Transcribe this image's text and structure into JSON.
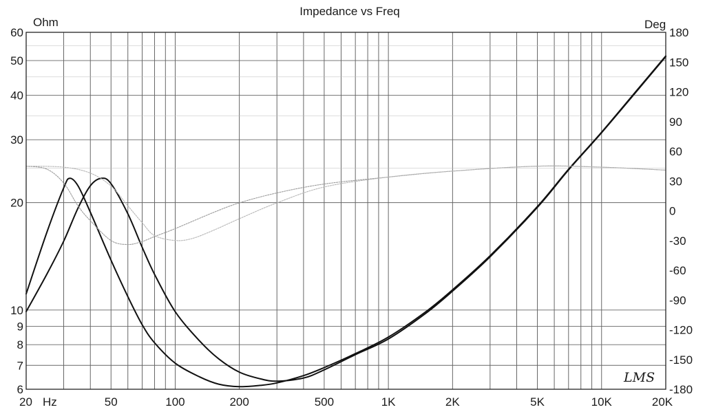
{
  "chart_data": {
    "type": "line",
    "title": "Impedance vs Freq",
    "left_axis_unit": "Ohm",
    "right_axis_unit": "Deg",
    "x_scale": "log",
    "y_scale": "log",
    "xlim": [
      20,
      20000
    ],
    "ylim": [
      6,
      60
    ],
    "y2lim": [
      -180,
      180
    ],
    "grid": true,
    "x_ticks": [
      {
        "value": 20,
        "label": "20"
      },
      {
        "value": 50,
        "label": "50"
      },
      {
        "value": 100,
        "label": "100"
      },
      {
        "value": 200,
        "label": "200"
      },
      {
        "value": 500,
        "label": "500"
      },
      {
        "value": 1000,
        "label": "1K"
      },
      {
        "value": 2000,
        "label": "2K"
      },
      {
        "value": 5000,
        "label": "5K"
      },
      {
        "value": 10000,
        "label": "10K"
      },
      {
        "value": 20000,
        "label": "20K"
      }
    ],
    "x_unit_label": "Hz",
    "y_ticks": [
      {
        "value": 6,
        "label": "6"
      },
      {
        "value": 7,
        "label": "7"
      },
      {
        "value": 8,
        "label": "8"
      },
      {
        "value": 9,
        "label": "9"
      },
      {
        "value": 10,
        "label": "10"
      },
      {
        "value": 20,
        "label": "20"
      },
      {
        "value": 30,
        "label": "30"
      },
      {
        "value": 40,
        "label": "40"
      },
      {
        "value": 50,
        "label": "50"
      },
      {
        "value": 60,
        "label": "60"
      }
    ],
    "y2_ticks": [
      {
        "value": 180,
        "label": "180"
      },
      {
        "value": 150,
        "label": "150"
      },
      {
        "value": 120,
        "label": "120"
      },
      {
        "value": 90,
        "label": "90"
      },
      {
        "value": 60,
        "label": "60"
      },
      {
        "value": 30,
        "label": "30"
      },
      {
        "value": 0,
        "label": "0"
      },
      {
        "value": -30,
        "label": "-30"
      },
      {
        "value": -60,
        "label": "-60"
      },
      {
        "value": -90,
        "label": "-90"
      },
      {
        "value": -120,
        "label": "-120"
      },
      {
        "value": -150,
        "label": "-150"
      },
      {
        "value": -180,
        "label": "-180"
      }
    ],
    "series": [
      {
        "axis": "left",
        "color": "#111111",
        "points": [
          [
            20,
            11.1
          ],
          [
            25,
            16.5
          ],
          [
            30,
            22.0
          ],
          [
            32,
            23.4
          ],
          [
            35,
            22.3
          ],
          [
            40,
            18.8
          ],
          [
            50,
            13.8
          ],
          [
            60,
            10.9
          ],
          [
            70,
            9.1
          ],
          [
            80,
            8.1
          ],
          [
            100,
            7.1
          ],
          [
            130,
            6.5
          ],
          [
            160,
            6.2
          ],
          [
            200,
            6.1
          ],
          [
            250,
            6.15
          ],
          [
            300,
            6.25
          ],
          [
            400,
            6.55
          ],
          [
            500,
            6.9
          ],
          [
            700,
            7.55
          ],
          [
            1000,
            8.4
          ],
          [
            1500,
            9.9
          ],
          [
            2000,
            11.4
          ],
          [
            3000,
            14.2
          ],
          [
            5000,
            19.5
          ],
          [
            7000,
            24.8
          ],
          [
            10000,
            31.5
          ],
          [
            15000,
            42.0
          ],
          [
            20000,
            51.5
          ]
        ]
      },
      {
        "axis": "left",
        "color": "#111111",
        "points": [
          [
            20,
            9.9
          ],
          [
            25,
            12.6
          ],
          [
            30,
            15.6
          ],
          [
            35,
            19.3
          ],
          [
            40,
            22.3
          ],
          [
            45,
            23.4
          ],
          [
            50,
            22.6
          ],
          [
            60,
            18.6
          ],
          [
            70,
            15.0
          ],
          [
            80,
            12.6
          ],
          [
            100,
            9.9
          ],
          [
            130,
            8.2
          ],
          [
            160,
            7.3
          ],
          [
            200,
            6.7
          ],
          [
            250,
            6.42
          ],
          [
            300,
            6.32
          ],
          [
            400,
            6.45
          ],
          [
            500,
            6.8
          ],
          [
            700,
            7.5
          ],
          [
            1000,
            8.3
          ],
          [
            1500,
            9.8
          ],
          [
            2000,
            11.3
          ],
          [
            3000,
            14.1
          ],
          [
            5000,
            19.4
          ],
          [
            7000,
            24.7
          ],
          [
            10000,
            31.4
          ],
          [
            15000,
            41.8
          ],
          [
            20000,
            51.3
          ]
        ]
      },
      {
        "axis": "right",
        "color": "#9a9a9a",
        "points": [
          [
            20,
            45
          ],
          [
            25,
            42
          ],
          [
            30,
            28
          ],
          [
            35,
            5
          ],
          [
            40,
            -10
          ],
          [
            50,
            -30
          ],
          [
            60,
            -34
          ],
          [
            70,
            -31
          ],
          [
            80,
            -26
          ],
          [
            100,
            -18
          ],
          [
            150,
            -2
          ],
          [
            200,
            8
          ],
          [
            300,
            18
          ],
          [
            500,
            27
          ],
          [
            1000,
            34
          ],
          [
            2000,
            40
          ],
          [
            5000,
            45
          ],
          [
            10000,
            44
          ],
          [
            20000,
            41
          ]
        ]
      },
      {
        "axis": "right",
        "color": "#b5b5b5",
        "points": [
          [
            20,
            45
          ],
          [
            30,
            44
          ],
          [
            40,
            38
          ],
          [
            50,
            25
          ],
          [
            60,
            5
          ],
          [
            70,
            -12
          ],
          [
            80,
            -25
          ],
          [
            100,
            -30
          ],
          [
            120,
            -28
          ],
          [
            150,
            -20
          ],
          [
            200,
            -8
          ],
          [
            300,
            8
          ],
          [
            500,
            24
          ],
          [
            1000,
            34
          ],
          [
            2000,
            40
          ],
          [
            5000,
            45
          ],
          [
            10000,
            44
          ],
          [
            20000,
            41
          ]
        ]
      }
    ]
  },
  "logo_text": "LMS"
}
